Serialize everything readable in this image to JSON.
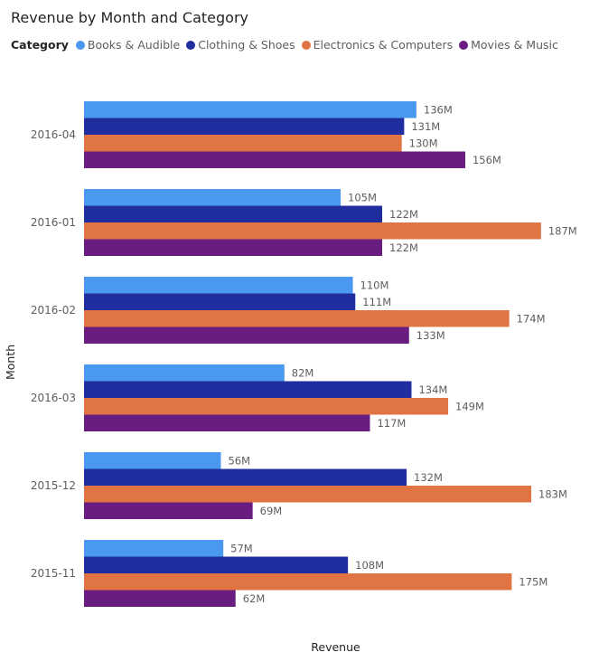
{
  "chart_data": {
    "type": "bar",
    "orientation": "horizontal",
    "title": "Revenue by Month and Category",
    "xlabel": "Revenue",
    "ylabel": "Month",
    "legend_title": "Category",
    "legend_position": "top-left",
    "grid": false,
    "categories": [
      "2016-04",
      "2016-01",
      "2016-02",
      "2016-03",
      "2015-12",
      "2015-11"
    ],
    "series": [
      {
        "name": "Books & Audible",
        "color": "#4a98f0",
        "values": [
          136,
          105,
          110,
          82,
          56,
          57
        ],
        "labels": [
          "136M",
          "105M",
          "110M",
          "82M",
          "56M",
          "57M"
        ]
      },
      {
        "name": "Clothing & Shoes",
        "color": "#1f2d9e",
        "values": [
          131,
          122,
          111,
          134,
          132,
          108
        ],
        "labels": [
          "131M",
          "122M",
          "111M",
          "134M",
          "132M",
          "108M"
        ]
      },
      {
        "name": "Electronics & Computers",
        "color": "#e07543",
        "values": [
          130,
          187,
          174,
          149,
          183,
          175
        ],
        "labels": [
          "130M",
          "187M",
          "174M",
          "149M",
          "183M",
          "175M"
        ]
      },
      {
        "name": "Movies & Music",
        "color": "#6a1d80",
        "values": [
          156,
          122,
          133,
          117,
          69,
          62
        ],
        "labels": [
          "156M",
          "122M",
          "133M",
          "117M",
          "69M",
          "62M"
        ]
      }
    ]
  }
}
